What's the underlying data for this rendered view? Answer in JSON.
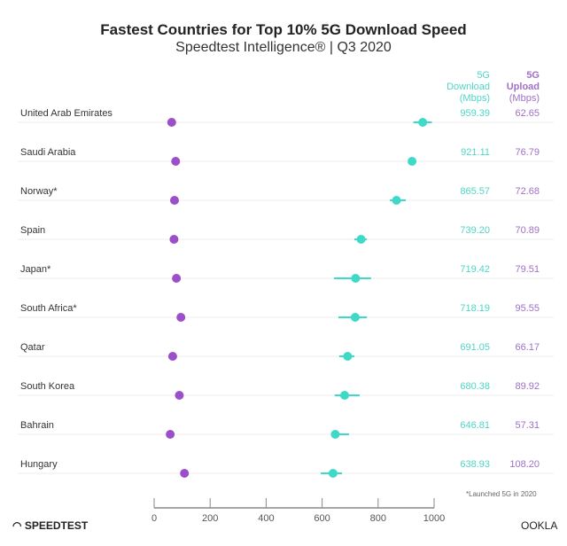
{
  "chart_data": {
    "type": "scatter",
    "title": "Fastest Countries for Top 10% 5G Download Speed",
    "subtitle": "Speedtest Intelligence® | Q3 2020",
    "xlim": [
      0,
      1000
    ],
    "xticks": [
      0,
      200,
      400,
      600,
      800,
      1000
    ],
    "grid": false,
    "columns": {
      "download": [
        "5G",
        "Download",
        "(Mbps)"
      ],
      "upload": [
        "5G",
        "Upload",
        "(Mbps)"
      ]
    },
    "colors": {
      "download": "#3fd9c7",
      "upload": "#9b4fc8"
    },
    "categories": [
      "United Arab Emirates",
      "Saudi Arabia",
      "Norway*",
      "Spain",
      "Japan*",
      "South Africa*",
      "Qatar",
      "South Korea",
      "Bahrain",
      "Hungary"
    ],
    "series": [
      {
        "name": "5G Download (Mbps)",
        "values": [
          959.39,
          921.11,
          865.57,
          739.2,
          719.42,
          718.19,
          691.05,
          680.38,
          646.81,
          638.93
        ],
        "ci_low": [
          926,
          910,
          842,
          715,
          642,
          658,
          661,
          645,
          639,
          595
        ],
        "ci_high": [
          992,
          932,
          899,
          760,
          775,
          760,
          715,
          734,
          696,
          671
        ],
        "labels": [
          "959.39",
          "921.11",
          "865.57",
          "739.20",
          "719.42",
          "718.19",
          "691.05",
          "680.38",
          "646.81",
          "638.93"
        ]
      },
      {
        "name": "5G Upload (Mbps)",
        "values": [
          62.65,
          76.79,
          72.68,
          70.89,
          79.51,
          95.55,
          66.17,
          89.92,
          57.31,
          108.2
        ],
        "labels": [
          "62.65",
          "76.79",
          "72.68",
          "70.89",
          "79.51",
          "95.55",
          "66.17",
          "89.92",
          "57.31",
          "108.20"
        ]
      }
    ],
    "footnote": "*Launched 5G in 2020"
  },
  "brand": {
    "left": "SPEEDTEST",
    "right": "OOKLA"
  }
}
